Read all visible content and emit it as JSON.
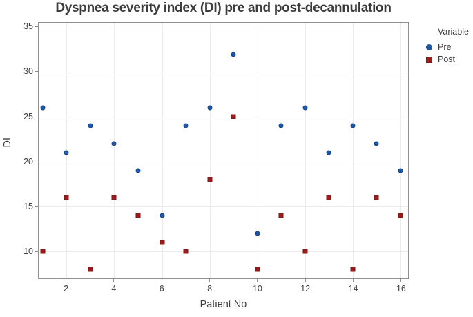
{
  "chart_data": {
    "type": "scatter",
    "title": "Dyspnea severity index (DI) pre and post-decannulation",
    "xlabel": "Patient No",
    "ylabel": "DI",
    "legend_title": "Variable",
    "legend_position": "right",
    "grid": true,
    "x": [
      1,
      2,
      3,
      4,
      5,
      6,
      7,
      8,
      9,
      10,
      11,
      12,
      13,
      14,
      15,
      16
    ],
    "series": [
      {
        "name": "Pre",
        "marker": "circle",
        "color": "#1D57A7",
        "values": [
          26,
          21,
          24,
          22,
          19,
          14,
          24,
          26,
          32,
          12,
          24,
          26,
          21,
          24,
          22,
          19
        ]
      },
      {
        "name": "Post",
        "marker": "square",
        "color": "#9C1C1C",
        "values": [
          10,
          16,
          8,
          16,
          14,
          11,
          10,
          18,
          25,
          8,
          14,
          10,
          16,
          8,
          16,
          14
        ]
      }
    ],
    "xticks": [
      2,
      4,
      6,
      8,
      10,
      12,
      14,
      16
    ],
    "yticks": [
      10,
      15,
      20,
      25,
      30,
      35
    ],
    "xlim": [
      0.83,
      16.32
    ],
    "ylim": [
      6.97,
      35.52
    ]
  },
  "colors": {
    "grid": "#EBEBEB",
    "frame": "#8F8F8F",
    "text": "#3D3D3D",
    "background": "#FFFFFF"
  }
}
